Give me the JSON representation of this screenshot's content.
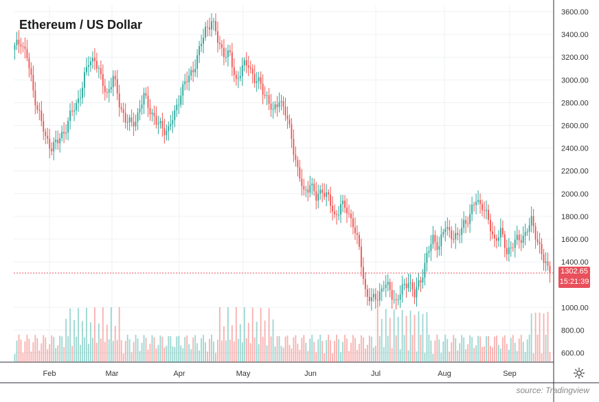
{
  "title": "Ethereum / US Dollar",
  "source": "source: Tradingview",
  "price_tag": {
    "price": "1302.65",
    "countdown": "15:21:39"
  },
  "icons": {
    "settings": "gear-icon"
  },
  "colors": {
    "up": "#26a69a",
    "down": "#ef5350",
    "last_line": "#e8505b",
    "grid": "#eef0f3"
  },
  "chart_data": {
    "type": "candlestick",
    "title": "Ethereum / US Dollar",
    "y_ticks": [
      "3600.00",
      "3400.00",
      "3200.00",
      "3000.00",
      "2800.00",
      "2600.00",
      "2400.00",
      "2200.00",
      "2000.00",
      "1800.00",
      "1600.00",
      "1400.00",
      "1000.00",
      "800.00",
      "600.00"
    ],
    "x_ticks": [
      "Feb",
      "Mar",
      "Apr",
      "May",
      "Jun",
      "Jul",
      "Aug",
      "Sep"
    ],
    "ylim": [
      520,
      3700
    ],
    "last_price": 1302.65,
    "close_path": [
      [
        0,
        3280
      ],
      [
        3,
        3350
      ],
      [
        6,
        3200
      ],
      [
        9,
        2900
      ],
      [
        12,
        2700
      ],
      [
        15,
        2480
      ],
      [
        18,
        2420
      ],
      [
        21,
        2450
      ],
      [
        24,
        2550
      ],
      [
        27,
        2680
      ],
      [
        30,
        2780
      ],
      [
        33,
        2950
      ],
      [
        36,
        3150
      ],
      [
        39,
        3200
      ],
      [
        42,
        3000
      ],
      [
        45,
        2880
      ],
      [
        48,
        3020
      ],
      [
        51,
        2800
      ],
      [
        54,
        2650
      ],
      [
        57,
        2600
      ],
      [
        60,
        2700
      ],
      [
        63,
        2850
      ],
      [
        66,
        2750
      ],
      [
        69,
        2620
      ],
      [
        72,
        2580
      ],
      [
        75,
        2560
      ],
      [
        78,
        2700
      ],
      [
        81,
        2900
      ],
      [
        84,
        2990
      ],
      [
        87,
        3100
      ],
      [
        90,
        3250
      ],
      [
        93,
        3450
      ],
      [
        96,
        3520
      ],
      [
        99,
        3350
      ],
      [
        102,
        3240
      ],
      [
        105,
        3200
      ],
      [
        108,
        3000
      ],
      [
        111,
        3100
      ],
      [
        114,
        3150
      ],
      [
        117,
        3000
      ],
      [
        120,
        2950
      ],
      [
        123,
        2850
      ],
      [
        126,
        2700
      ],
      [
        129,
        2850
      ],
      [
        132,
        2700
      ],
      [
        135,
        2500
      ],
      [
        138,
        2200
      ],
      [
        141,
        2000
      ],
      [
        144,
        2100
      ],
      [
        147,
        1950
      ],
      [
        150,
        2050
      ],
      [
        153,
        1950
      ],
      [
        156,
        1800
      ],
      [
        159,
        1900
      ],
      [
        162,
        1850
      ],
      [
        165,
        1750
      ],
      [
        168,
        1500
      ],
      [
        171,
        1150
      ],
      [
        174,
        1050
      ],
      [
        177,
        1100
      ],
      [
        180,
        1200
      ],
      [
        183,
        1150
      ],
      [
        186,
        1050
      ],
      [
        189,
        1150
      ],
      [
        192,
        1250
      ],
      [
        195,
        1100
      ],
      [
        198,
        1250
      ],
      [
        201,
        1450
      ],
      [
        204,
        1600
      ],
      [
        207,
        1550
      ],
      [
        210,
        1700
      ],
      [
        213,
        1650
      ],
      [
        216,
        1600
      ],
      [
        219,
        1750
      ],
      [
        222,
        1800
      ],
      [
        225,
        1950
      ],
      [
        228,
        1900
      ],
      [
        231,
        1750
      ],
      [
        234,
        1600
      ],
      [
        237,
        1650
      ],
      [
        240,
        1500
      ],
      [
        243,
        1550
      ],
      [
        246,
        1600
      ],
      [
        249,
        1650
      ],
      [
        252,
        1750
      ],
      [
        255,
        1600
      ],
      [
        258,
        1400
      ],
      [
        261,
        1302.65
      ]
    ],
    "volume_range": [
      0,
      920
    ]
  }
}
